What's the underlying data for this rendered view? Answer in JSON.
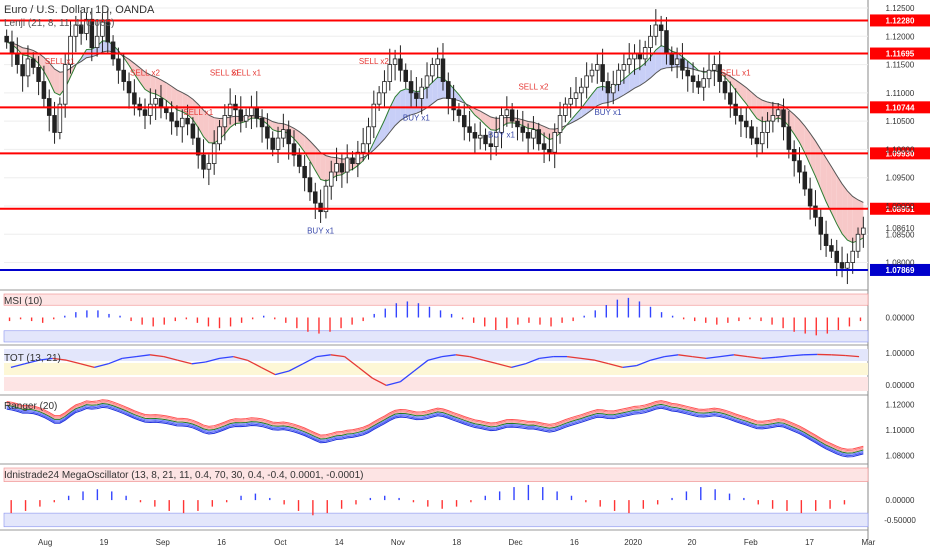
{
  "header": {
    "title": "Euro / U.S. Dollar, 1D, OANDA",
    "indicator": "Lenji (21, 8, 11, 1, 0.005)"
  },
  "panels": {
    "msi": "MSI (10)",
    "tot": "TOT (13, 21)",
    "ranger": "Ranger (20)",
    "mega": "Idnistrade24 MegaOscillator (13, 8, 21, 11, 0.4, 70, 30, 0.4, -0.4, 0.0001, -0.0001)"
  },
  "colors": {
    "up": "#26a69a",
    "down": "#ef5350",
    "candle": "#222222",
    "resistance": "#ff0000",
    "support": "#0000cc",
    "cloud_red": "#f7c8c8",
    "cloud_blue": "#c8cff7",
    "oscillator_up": "#3344ff",
    "oscillator_down": "#ff3333"
  },
  "chart_data": {
    "type": "candlestick",
    "ylim": [
      1.0755,
      1.125
    ],
    "price_ticks": [
      "1.12500",
      "1.12000",
      "1.11500",
      "1.11000",
      "1.10500",
      "1.10000",
      "1.09500",
      "1.09000",
      "1.08500",
      "1.08000"
    ],
    "x_ticks": [
      "Aug",
      "19",
      "Sep",
      "16",
      "Oct",
      "14",
      "Nov",
      "18",
      "Dec",
      "16",
      "2020",
      "20",
      "Feb",
      "17",
      "Mar"
    ],
    "levels": [
      {
        "value": 1.1228,
        "label": "1.12280",
        "kind": "resistance"
      },
      {
        "value": 1.11695,
        "label": "1.11695",
        "kind": "resistance"
      },
      {
        "value": 1.10744,
        "label": "1.10744",
        "kind": "resistance"
      },
      {
        "value": 1.0993,
        "label": "1.09930",
        "kind": "resistance"
      },
      {
        "value": 1.08951,
        "label": "1.08951",
        "kind": "resistance"
      },
      {
        "value": 1.07869,
        "label": "1.07869",
        "kind": "support"
      }
    ],
    "last_price": {
      "value": 1.0861,
      "label": "1.08610"
    },
    "signals": [
      {
        "label": "SELL x1",
        "type": "sell"
      },
      {
        "label": "SELL x2",
        "type": "sell"
      },
      {
        "label": "SELL x1",
        "type": "sell"
      },
      {
        "label": "SELL x1",
        "type": "sell"
      },
      {
        "label": "SELL x1",
        "type": "sell"
      },
      {
        "label": "BUY x1",
        "type": "buy"
      },
      {
        "label": "SELL x2",
        "type": "sell"
      },
      {
        "label": "BUY x1",
        "type": "buy"
      },
      {
        "label": "BUY x1",
        "type": "buy"
      },
      {
        "label": "SELL x2",
        "type": "sell"
      },
      {
        "label": "BUY x1",
        "type": "buy"
      },
      {
        "label": "SELL x1",
        "type": "sell"
      }
    ],
    "candles_close": [
      1.119,
      1.117,
      1.115,
      1.113,
      1.116,
      1.1145,
      1.112,
      1.109,
      1.106,
      1.103,
      1.108,
      1.115,
      1.12,
      1.122,
      1.1205,
      1.123,
      1.118,
      1.12,
      1.1225,
      1.119,
      1.116,
      1.114,
      1.112,
      1.11,
      1.108,
      1.107,
      1.106,
      1.108,
      1.109,
      1.1075,
      1.1065,
      1.105,
      1.104,
      1.1055,
      1.1045,
      1.102,
      1.099,
      1.0965,
      1.0975,
      1.101,
      1.104,
      1.106,
      1.108,
      1.107,
      1.105,
      1.106,
      1.1075,
      1.1055,
      1.104,
      1.102,
      1.1,
      1.102,
      1.1035,
      1.101,
      1.099,
      1.097,
      1.095,
      1.0925,
      1.0905,
      1.089,
      1.0935,
      1.096,
      1.0975,
      1.096,
      1.0985,
      1.0975,
      1.0995,
      1.101,
      1.104,
      1.108,
      1.11,
      1.112,
      1.115,
      1.116,
      1.114,
      1.112,
      1.11,
      1.109,
      1.111,
      1.113,
      1.115,
      1.116,
      1.112,
      1.109,
      1.107,
      1.106,
      1.104,
      1.103,
      1.102,
      1.1025,
      1.101,
      1.1005,
      1.103,
      1.106,
      1.107,
      1.105,
      1.104,
      1.103,
      1.102,
      1.1035,
      1.101,
      1.1,
      1.0995,
      1.103,
      1.106,
      1.108,
      1.109,
      1.11,
      1.111,
      1.113,
      1.114,
      1.115,
      1.112,
      1.11,
      1.1115,
      1.114,
      1.115,
      1.116,
      1.117,
      1.116,
      1.118,
      1.12,
      1.122,
      1.121,
      1.117,
      1.115,
      1.116,
      1.114,
      1.113,
      1.112,
      1.111,
      1.1125,
      1.114,
      1.115,
      1.112,
      1.11,
      1.108,
      1.106,
      1.105,
      1.104,
      1.102,
      1.101,
      1.103,
      1.105,
      1.106,
      1.107,
      1.104,
      1.1,
      1.098,
      1.096,
      1.093,
      1.09,
      1.088,
      1.085,
      1.083,
      1.082,
      1.08,
      1.079,
      1.08,
      1.082,
      1.085,
      1.0861
    ]
  },
  "msi": {
    "ticks": [
      "0.00000"
    ],
    "values": [
      -0.2,
      -0.1,
      -0.2,
      -0.3,
      -0.1,
      0.1,
      0.3,
      0.4,
      0.4,
      0.2,
      0.1,
      -0.2,
      -0.4,
      -0.5,
      -0.4,
      -0.2,
      -0.1,
      -0.3,
      -0.5,
      -0.6,
      -0.5,
      -0.3,
      -0.1,
      0.1,
      -0.1,
      -0.3,
      -0.6,
      -0.8,
      -0.9,
      -0.8,
      -0.6,
      -0.4,
      -0.2,
      0.2,
      0.5,
      0.8,
      0.9,
      0.8,
      0.6,
      0.4,
      0.2,
      -0.1,
      -0.3,
      -0.5,
      -0.7,
      -0.6,
      -0.4,
      -0.3,
      -0.4,
      -0.5,
      -0.3,
      -0.2,
      0.1,
      0.4,
      0.7,
      1.0,
      1.1,
      0.9,
      0.6,
      0.3,
      0.1,
      -0.1,
      -0.2,
      -0.3,
      -0.4,
      -0.3,
      -0.2,
      -0.1,
      -0.2,
      -0.4,
      -0.6,
      -0.8,
      -0.9,
      -1.0,
      -0.9,
      -0.7,
      -0.5,
      -0.2
    ]
  },
  "tot": {
    "ticks": [
      "1.00000",
      "0.00000"
    ],
    "values": [
      0.6,
      0.7,
      0.8,
      0.85,
      0.8,
      0.7,
      0.6,
      0.7,
      0.85,
      0.9,
      0.95,
      0.9,
      0.8,
      0.7,
      0.75,
      0.85,
      0.9,
      0.8,
      0.6,
      0.4,
      0.5,
      0.7,
      0.9,
      0.95,
      0.9,
      0.6,
      0.3,
      0.1,
      0.2,
      0.5,
      0.8,
      0.9,
      0.95,
      0.9,
      0.8,
      0.7,
      0.6,
      0.7,
      0.85,
      0.9,
      0.9,
      0.85,
      0.8,
      0.7,
      0.6,
      0.65,
      0.8,
      0.9,
      0.95,
      0.9,
      0.85,
      0.9,
      0.95,
      0.9,
      0.85,
      0.88,
      0.92,
      0.95,
      0.96,
      0.95,
      0.93,
      0.9
    ]
  },
  "ranger": {
    "ticks": [
      "1.12000",
      "1.10000",
      "1.08000"
    ]
  },
  "mega": {
    "ticks": [
      "0.00000",
      "-0.50000"
    ],
    "values": [
      -0.6,
      -0.5,
      -0.3,
      -0.1,
      0.2,
      0.4,
      0.5,
      0.4,
      0.2,
      -0.1,
      -0.3,
      -0.5,
      -0.6,
      -0.5,
      -0.3,
      -0.1,
      0.2,
      0.3,
      0.1,
      -0.2,
      -0.5,
      -0.7,
      -0.6,
      -0.4,
      -0.2,
      0.1,
      0.2,
      0.1,
      -0.1,
      -0.3,
      -0.4,
      -0.3,
      -0.1,
      0.2,
      0.4,
      0.6,
      0.7,
      0.6,
      0.4,
      0.2,
      -0.1,
      -0.3,
      -0.5,
      -0.6,
      -0.4,
      -0.2,
      0.1,
      0.4,
      0.6,
      0.5,
      0.3,
      0.1,
      -0.2,
      -0.4,
      -0.5,
      -0.6,
      -0.5,
      -0.4,
      -0.2,
      0.0
    ]
  }
}
